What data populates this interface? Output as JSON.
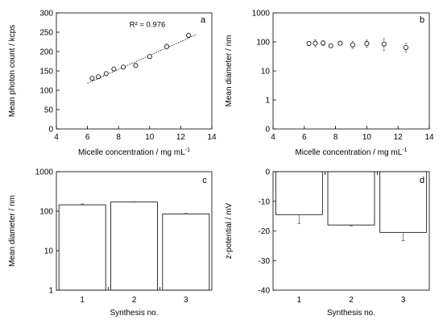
{
  "chart_data": [
    {
      "panel": "a",
      "type": "scatter",
      "xlabel": "Micelle concentration / mg mL",
      "xlabel_sup": "-1",
      "ylabel": "Mean photon count / kcps",
      "xlim": [
        4,
        14
      ],
      "ylim": [
        0,
        300
      ],
      "xticks": [
        4,
        6,
        8,
        10,
        12,
        14
      ],
      "yticks": [
        0,
        50,
        100,
        150,
        200,
        250,
        300
      ],
      "annotation": "R² = 0.976",
      "trendline": {
        "x": [
          6,
          13
        ],
        "y": [
          118,
          244
        ]
      },
      "points": [
        {
          "x": 6.3,
          "y": 131,
          "err": 4
        },
        {
          "x": 6.7,
          "y": 135,
          "err": 4
        },
        {
          "x": 7.2,
          "y": 143,
          "err": 4
        },
        {
          "x": 7.7,
          "y": 155,
          "err": 4
        },
        {
          "x": 8.3,
          "y": 160,
          "err": 4
        },
        {
          "x": 9.1,
          "y": 164,
          "err": 5
        },
        {
          "x": 10.0,
          "y": 187,
          "err": 5
        },
        {
          "x": 11.1,
          "y": 213,
          "err": 8
        },
        {
          "x": 12.5,
          "y": 242,
          "err": 8
        }
      ]
    },
    {
      "panel": "b",
      "type": "scatter",
      "xlabel": "Micelle concentration / mg mL",
      "xlabel_sup": "-1",
      "ylabel": "Mean diameter / nm",
      "xlim": [
        4,
        14
      ],
      "ylim": [
        0.1,
        1000
      ],
      "yscale": "log",
      "xticks": [
        4,
        6,
        8,
        10,
        12,
        14
      ],
      "yticks": [
        0.1,
        1,
        10,
        100,
        1000
      ],
      "ytick_labels": [
        "0",
        "1",
        "10",
        "100",
        "1000"
      ],
      "points": [
        {
          "x": 6.3,
          "y": 88,
          "lo": 75,
          "hi": 102
        },
        {
          "x": 6.7,
          "y": 90,
          "lo": 68,
          "hi": 118
        },
        {
          "x": 7.2,
          "y": 91,
          "lo": 75,
          "hi": 110
        },
        {
          "x": 7.7,
          "y": 74,
          "lo": 66,
          "hi": 84
        },
        {
          "x": 8.3,
          "y": 90,
          "lo": 80,
          "hi": 100
        },
        {
          "x": 9.1,
          "y": 80,
          "lo": 60,
          "hi": 105
        },
        {
          "x": 10.0,
          "y": 87,
          "lo": 65,
          "hi": 115
        },
        {
          "x": 11.1,
          "y": 84,
          "lo": 50,
          "hi": 130
        },
        {
          "x": 12.5,
          "y": 64,
          "lo": 45,
          "hi": 88
        }
      ]
    },
    {
      "panel": "c",
      "type": "bar",
      "xlabel": "Synthesis no.",
      "ylabel": "Mean diameter / nm",
      "yscale": "log",
      "ylim": [
        1,
        1000
      ],
      "yticks": [
        1,
        10,
        100,
        1000
      ],
      "ytick_labels": [
        "1",
        "10",
        "100",
        "1000"
      ],
      "categories": [
        "1",
        "2",
        "3"
      ],
      "values": [
        145,
        170,
        85
      ],
      "err_hi": [
        152,
        174,
        88
      ]
    },
    {
      "panel": "d",
      "type": "bar",
      "xlabel": "Synthesis no.",
      "ylabel": "z-potential / mV",
      "ylim": [
        -40,
        0
      ],
      "yticks": [
        0,
        -10,
        -20,
        -30,
        -40
      ],
      "categories": [
        "1",
        "2",
        "3"
      ],
      "values": [
        -14.5,
        -18.0,
        -20.5
      ],
      "err_lo": [
        -17.5,
        -18.3,
        -23.3
      ]
    }
  ]
}
